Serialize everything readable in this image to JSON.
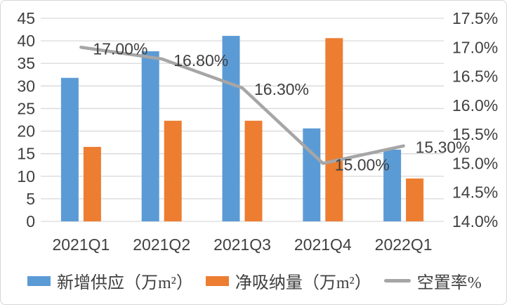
{
  "chart_data": {
    "type": "combo",
    "title": "",
    "categories": [
      "2021Q1",
      "2021Q2",
      "2021Q3",
      "2021Q4",
      "2022Q1"
    ],
    "series": [
      {
        "name": "新增供应（万m²）",
        "type": "bar",
        "axis": "left",
        "color": "#5B9BD5",
        "values": [
          31.8,
          37.7,
          41.1,
          20.6,
          15.9
        ]
      },
      {
        "name": "净吸纳量（万m²）",
        "type": "bar",
        "axis": "left",
        "color": "#ED7D31",
        "values": [
          16.5,
          22.3,
          22.3,
          40.6,
          9.5
        ]
      },
      {
        "name": "空置率%",
        "type": "line",
        "axis": "right",
        "color": "#A6A6A6",
        "values": [
          17.0,
          16.8,
          16.3,
          15.0,
          15.3
        ],
        "data_labels": [
          "17.00%",
          "16.80%",
          "16.30%",
          "15.00%",
          "15.30%"
        ]
      }
    ],
    "left_axis": {
      "min": 0,
      "max": 45,
      "step": 5,
      "ticks": [
        "45",
        "40",
        "35",
        "30",
        "25",
        "20",
        "15",
        "10",
        "5",
        "0"
      ]
    },
    "right_axis": {
      "min": 14.0,
      "max": 17.5,
      "step": 0.5,
      "ticks": [
        "17.5%",
        "17.0%",
        "16.5%",
        "16.0%",
        "15.5%",
        "15.0%",
        "14.5%",
        "14.0%"
      ]
    },
    "grid": true,
    "legend_position": "bottom"
  },
  "colors": {
    "bar_blue": "#5B9BD5",
    "bar_orange": "#ED7D31",
    "line_gray": "#A6A6A6",
    "gridline": "#D9D9D9",
    "text": "#404040",
    "card_border": "#D7D7D7",
    "background": "#FFFFFF"
  }
}
